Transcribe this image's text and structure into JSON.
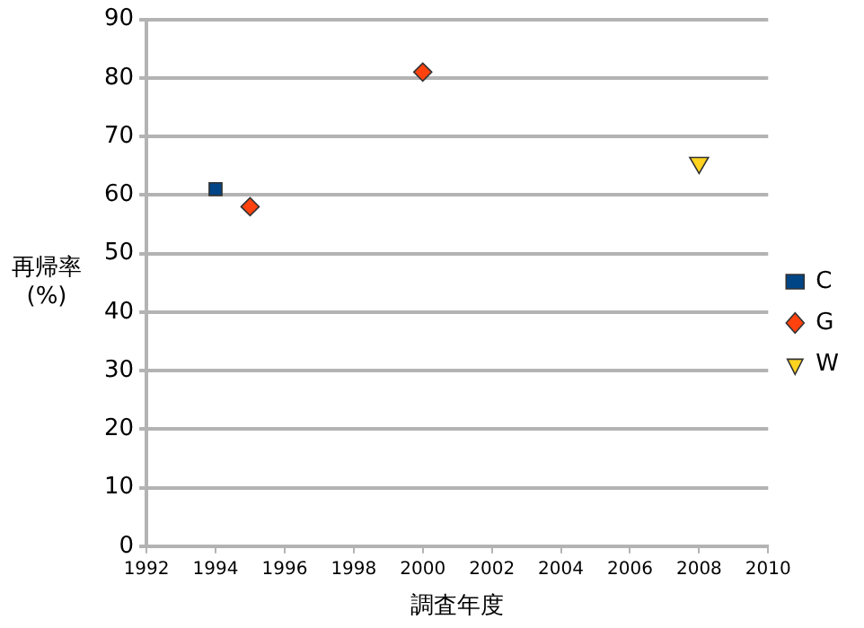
{
  "chart_data": {
    "type": "scatter",
    "xlabel": "調査年度",
    "ylabel": "再帰率 (%)",
    "series": [
      {
        "name": "C",
        "color": "#004586",
        "marker": "square",
        "x": [
          1994
        ],
        "values": [
          61
        ]
      },
      {
        "name": "G",
        "color": "#ff420e",
        "marker": "diamond",
        "x": [
          1995,
          2000
        ],
        "values": [
          58,
          81
        ]
      },
      {
        "name": "W",
        "color": "#ffd320",
        "marker": "triangle",
        "x": [
          2008
        ],
        "values": [
          65.5
        ]
      }
    ],
    "xlim": [
      1992,
      2010
    ],
    "xticks": [
      1992,
      1994,
      1996,
      1998,
      2000,
      2002,
      2004,
      2006,
      2008,
      2010
    ],
    "ylim": [
      0,
      90
    ],
    "yticks": [
      0,
      10,
      20,
      30,
      40,
      50,
      60,
      70,
      80,
      90
    ],
    "grid": "y",
    "legend": "right"
  }
}
